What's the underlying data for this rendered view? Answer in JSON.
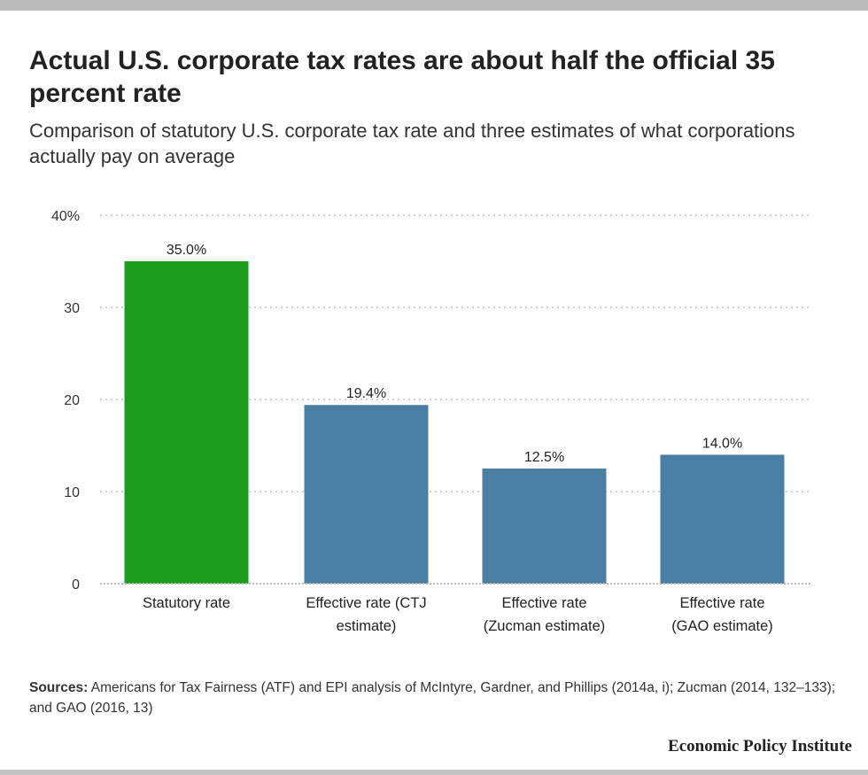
{
  "title": "Actual U.S. corporate tax rates are about half the official 35 percent rate",
  "subtitle": "Comparison of statutory U.S. corporate tax rate and three estimates of what corporations actually pay on average",
  "source_label": "Sources:",
  "source_text": "Americans for Tax Fairness (ATF) and EPI analysis of McIntyre, Gardner, and Phillips (2014a, i); Zucman (2014, 132–133); and GAO (2016, 13)",
  "logo": "Economic Policy Institute",
  "chart_data": {
    "type": "bar",
    "categories": [
      [
        "Statutory rate"
      ],
      [
        "Effective rate (CTJ",
        "estimate)"
      ],
      [
        "Effective rate",
        "(Zucman estimate)"
      ],
      [
        "Effective rate",
        "(GAO estimate)"
      ]
    ],
    "values": [
      35.0,
      19.4,
      12.5,
      14.0
    ],
    "data_labels": [
      "35.0%",
      "19.4%",
      "12.5%",
      "14.0%"
    ],
    "colors": [
      "#1c9e1c",
      "#4a7fa3"
    ],
    "bar_colors": [
      "#1c9e1c",
      "#4a7fa3",
      "#4a7fa3",
      "#4a7fa3"
    ],
    "ylim": [
      0,
      40
    ],
    "yticks": [
      0,
      10,
      20,
      30,
      40
    ],
    "ytick_labels": [
      "0",
      "10",
      "20",
      "30",
      "40%"
    ],
    "grid": true,
    "xlabel": "",
    "ylabel": ""
  }
}
